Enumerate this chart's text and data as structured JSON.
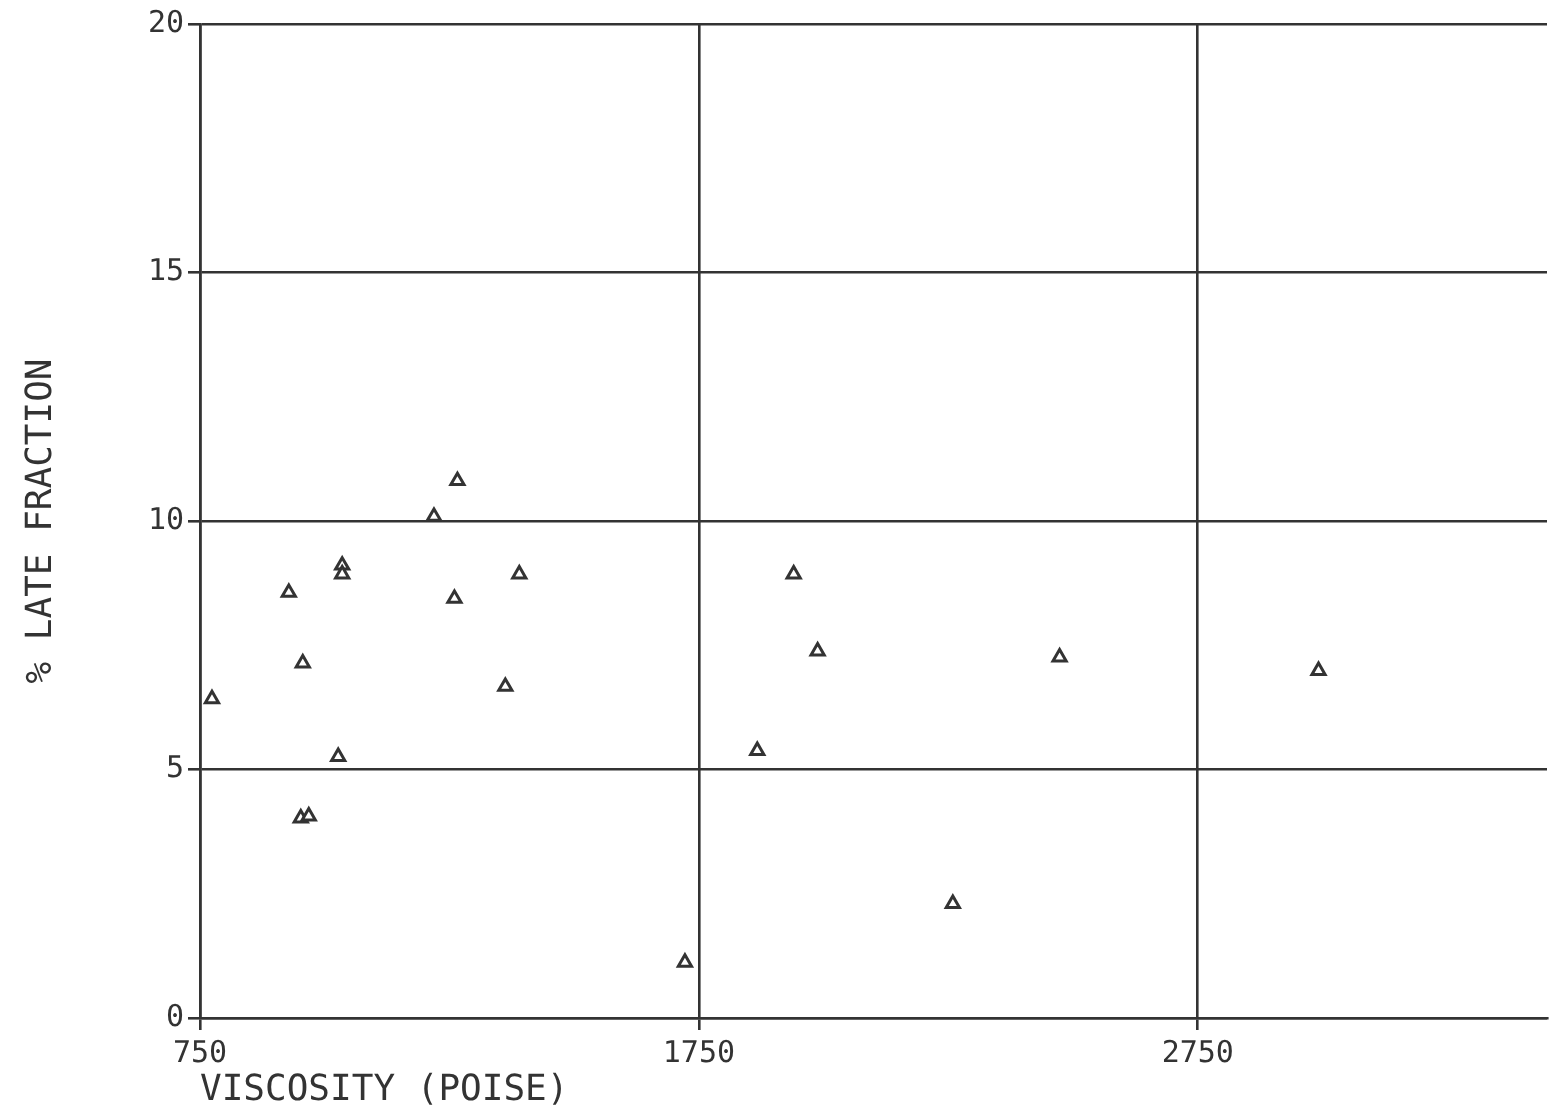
{
  "chart_data": {
    "type": "scatter",
    "xlabel": "VISCOSITY (POISE)",
    "ylabel": "% LATE FRACTION",
    "x": [
      774,
      928,
      956,
      952,
      968,
      1027,
      1035,
      1035,
      1219,
      1266,
      1260,
      1362,
      1390,
      1722,
      1867,
      1940,
      1988,
      2259,
      2473,
      2992
    ],
    "values": [
      6.42,
      8.56,
      7.14,
      4.02,
      4.06,
      5.26,
      9.11,
      8.93,
      10.09,
      10.81,
      8.44,
      6.67,
      8.93,
      1.12,
      5.38,
      8.93,
      7.38,
      2.3,
      7.26,
      6.99
    ],
    "color": "#333333",
    "marker": "triangle",
    "xlim": [
      750,
      3450
    ],
    "xticks": [
      750,
      1750,
      2750
    ],
    "ylim": [
      0,
      20
    ],
    "yticks": [
      0,
      5,
      10,
      15,
      20
    ],
    "grid": true,
    "legend": false
  }
}
